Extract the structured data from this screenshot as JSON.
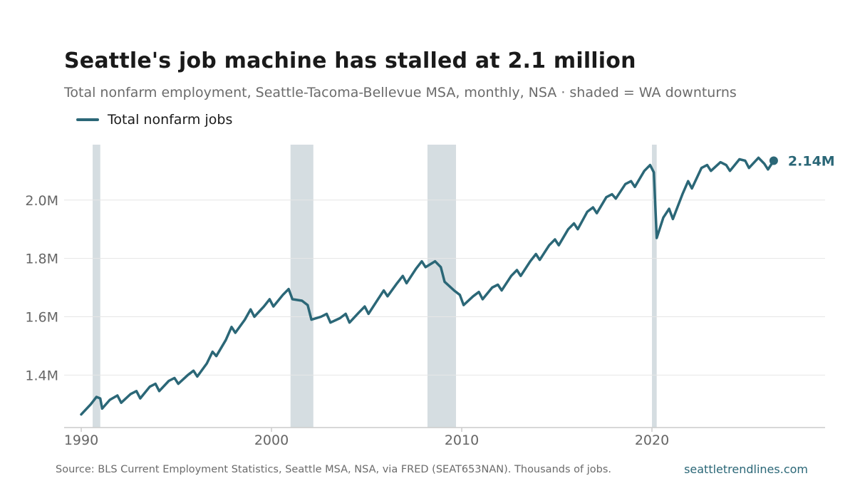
{
  "header": {
    "title": "Seattle's job machine has stalled at 2.1 million",
    "subtitle": "Total nonfarm employment, Seattle-Tacoma-Bellevue MSA, monthly, NSA · shaded = WA downturns"
  },
  "footer": {
    "source": "Source: BLS Current Employment Statistics, Seattle MSA, NSA, via FRED (SEAT653NAN). Thousands of jobs.",
    "site": "seattletrendlines.com"
  },
  "colors": {
    "line": "#2b6777",
    "shade": "#d5dde1",
    "grid": "#e6e6e6",
    "axis": "#cccccc"
  },
  "chart_data": {
    "type": "line",
    "title": "Seattle's job machine has stalled at 2.1 million",
    "subtitle": "Total nonfarm employment, Seattle-Tacoma-Bellevue MSA, monthly, NSA · shaded = WA downturns",
    "xlabel": "",
    "ylabel": "",
    "xlim": [
      1989.1,
      2029.1
    ],
    "ylim": [
      1.22,
      2.19
    ],
    "x_ticks": [
      1990,
      2000,
      2010,
      2020
    ],
    "x_tick_labels": [
      "1990",
      "2000",
      "2010",
      "2020"
    ],
    "y_ticks": [
      1.4,
      1.6,
      1.8,
      2.0
    ],
    "y_tick_labels": [
      "1.4M",
      "1.6M",
      "1.8M",
      "2.0M"
    ],
    "grid": "horizontal",
    "legend": "top-left",
    "last_value_label": "2.14M",
    "shaded_periods": [
      [
        1990.6,
        1991.0
      ],
      [
        2001.0,
        2002.2
      ],
      [
        2008.2,
        2009.7
      ],
      [
        2020.0,
        2020.25
      ]
    ],
    "series": [
      {
        "name": "Total nonfarm jobs",
        "points": [
          [
            1990.0,
            1.265
          ],
          [
            1990.5,
            1.3
          ],
          [
            1990.8,
            1.325
          ],
          [
            1991.0,
            1.32
          ],
          [
            1991.1,
            1.285
          ],
          [
            1991.5,
            1.315
          ],
          [
            1991.9,
            1.33
          ],
          [
            1992.1,
            1.305
          ],
          [
            1992.6,
            1.335
          ],
          [
            1992.9,
            1.345
          ],
          [
            1993.1,
            1.32
          ],
          [
            1993.6,
            1.36
          ],
          [
            1993.9,
            1.37
          ],
          [
            1994.1,
            1.345
          ],
          [
            1994.6,
            1.38
          ],
          [
            1994.9,
            1.39
          ],
          [
            1995.1,
            1.37
          ],
          [
            1995.6,
            1.4
          ],
          [
            1995.9,
            1.415
          ],
          [
            1996.1,
            1.395
          ],
          [
            1996.6,
            1.44
          ],
          [
            1996.9,
            1.48
          ],
          [
            1997.1,
            1.465
          ],
          [
            1997.6,
            1.52
          ],
          [
            1997.9,
            1.565
          ],
          [
            1998.1,
            1.545
          ],
          [
            1998.6,
            1.59
          ],
          [
            1998.9,
            1.625
          ],
          [
            1999.1,
            1.6
          ],
          [
            1999.6,
            1.635
          ],
          [
            1999.9,
            1.66
          ],
          [
            2000.1,
            1.635
          ],
          [
            2000.6,
            1.675
          ],
          [
            2000.9,
            1.695
          ],
          [
            2001.1,
            1.66
          ],
          [
            2001.6,
            1.655
          ],
          [
            2001.9,
            1.64
          ],
          [
            2002.1,
            1.59
          ],
          [
            2002.6,
            1.6
          ],
          [
            2002.9,
            1.61
          ],
          [
            2003.1,
            1.58
          ],
          [
            2003.6,
            1.595
          ],
          [
            2003.9,
            1.61
          ],
          [
            2004.1,
            1.58
          ],
          [
            2004.6,
            1.615
          ],
          [
            2004.9,
            1.635
          ],
          [
            2005.1,
            1.61
          ],
          [
            2005.6,
            1.66
          ],
          [
            2005.9,
            1.69
          ],
          [
            2006.1,
            1.67
          ],
          [
            2006.6,
            1.715
          ],
          [
            2006.9,
            1.74
          ],
          [
            2007.1,
            1.715
          ],
          [
            2007.6,
            1.765
          ],
          [
            2007.9,
            1.79
          ],
          [
            2008.1,
            1.77
          ],
          [
            2008.6,
            1.79
          ],
          [
            2008.9,
            1.77
          ],
          [
            2009.1,
            1.72
          ],
          [
            2009.6,
            1.69
          ],
          [
            2009.9,
            1.675
          ],
          [
            2010.1,
            1.64
          ],
          [
            2010.6,
            1.67
          ],
          [
            2010.9,
            1.685
          ],
          [
            2011.1,
            1.66
          ],
          [
            2011.6,
            1.7
          ],
          [
            2011.9,
            1.71
          ],
          [
            2012.1,
            1.69
          ],
          [
            2012.6,
            1.74
          ],
          [
            2012.9,
            1.76
          ],
          [
            2013.1,
            1.74
          ],
          [
            2013.6,
            1.79
          ],
          [
            2013.9,
            1.815
          ],
          [
            2014.1,
            1.795
          ],
          [
            2014.6,
            1.845
          ],
          [
            2014.9,
            1.865
          ],
          [
            2015.1,
            1.845
          ],
          [
            2015.6,
            1.9
          ],
          [
            2015.9,
            1.92
          ],
          [
            2016.1,
            1.9
          ],
          [
            2016.6,
            1.96
          ],
          [
            2016.9,
            1.975
          ],
          [
            2017.1,
            1.955
          ],
          [
            2017.6,
            2.01
          ],
          [
            2017.9,
            2.02
          ],
          [
            2018.1,
            2.005
          ],
          [
            2018.6,
            2.055
          ],
          [
            2018.9,
            2.065
          ],
          [
            2019.1,
            2.045
          ],
          [
            2019.6,
            2.1
          ],
          [
            2019.9,
            2.12
          ],
          [
            2020.1,
            2.095
          ],
          [
            2020.25,
            1.87
          ],
          [
            2020.6,
            1.94
          ],
          [
            2020.9,
            1.97
          ],
          [
            2021.1,
            1.935
          ],
          [
            2021.6,
            2.02
          ],
          [
            2021.9,
            2.065
          ],
          [
            2022.1,
            2.04
          ],
          [
            2022.6,
            2.11
          ],
          [
            2022.9,
            2.12
          ],
          [
            2023.1,
            2.1
          ],
          [
            2023.6,
            2.13
          ],
          [
            2023.9,
            2.12
          ],
          [
            2024.1,
            2.1
          ],
          [
            2024.6,
            2.14
          ],
          [
            2024.9,
            2.135
          ],
          [
            2025.1,
            2.11
          ],
          [
            2025.6,
            2.145
          ],
          [
            2025.9,
            2.125
          ],
          [
            2026.1,
            2.105
          ],
          [
            2026.4,
            2.135
          ]
        ]
      }
    ]
  }
}
